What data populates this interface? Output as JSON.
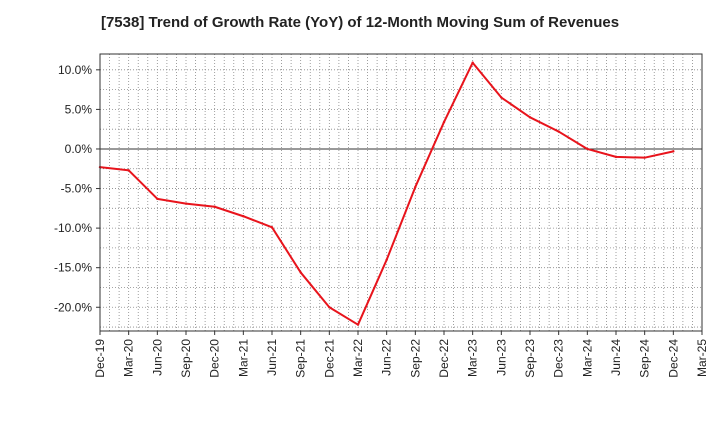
{
  "chart_data": {
    "type": "line",
    "title": "[7538]  Trend of Growth Rate (YoY) of 12-Month Moving Sum of Revenues",
    "xlabel": "",
    "ylabel": "",
    "x_ticks": [
      "Dec-19",
      "Mar-20",
      "Jun-20",
      "Sep-20",
      "Dec-20",
      "Mar-21",
      "Jun-21",
      "Sep-21",
      "Dec-21",
      "Mar-22",
      "Jun-22",
      "Sep-22",
      "Dec-22",
      "Mar-23",
      "Jun-23",
      "Sep-23",
      "Dec-23",
      "Mar-24",
      "Jun-24",
      "Sep-24",
      "Dec-24",
      "Mar-25"
    ],
    "y_ticks": [
      "10.0%",
      "5.0%",
      "0.0%",
      "-5.0%",
      "-10.0%",
      "-15.0%",
      "-20.0%"
    ],
    "y_tick_values": [
      10,
      5,
      0,
      -5,
      -10,
      -15,
      -20
    ],
    "ylim": [
      -23,
      12
    ],
    "unit": "%",
    "grid": true,
    "series": [
      {
        "color": "#e8141c",
        "x": [
          "Dec-19",
          "Mar-20",
          "Jun-20",
          "Sep-20",
          "Dec-20",
          "Mar-21",
          "Jun-21",
          "Sep-21",
          "Dec-21",
          "Mar-22",
          "Jun-22",
          "Sep-22",
          "Dec-22",
          "Mar-23",
          "Jun-23",
          "Sep-23",
          "Dec-23",
          "Mar-24",
          "Jun-24",
          "Sep-24",
          "Dec-24"
        ],
        "values": [
          -2.3,
          -2.7,
          -6.3,
          -6.9,
          -7.3,
          -8.5,
          -9.9,
          -15.6,
          -20.0,
          -22.2,
          -14.0,
          -4.8,
          3.4,
          10.9,
          6.5,
          4.0,
          2.2,
          0.0,
          -1.0,
          -1.1,
          -0.3
        ]
      }
    ]
  }
}
